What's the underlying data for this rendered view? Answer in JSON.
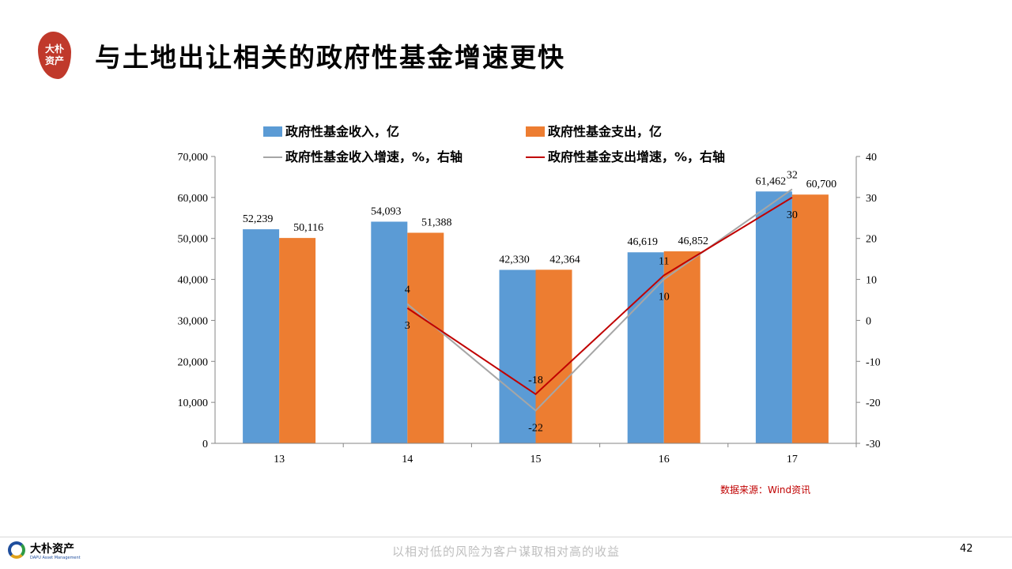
{
  "header": {
    "title": "与土地出让相关的政府性基金增速更快",
    "logo_text": [
      "大朴",
      "资产"
    ]
  },
  "chart_data": {
    "type": "bar",
    "categories": [
      "13",
      "14",
      "15",
      "16",
      "17"
    ],
    "series": [
      {
        "name": "政府性基金收入，亿",
        "kind": "bar",
        "axis": "left",
        "color": "#5b9bd5",
        "values": [
          52239,
          54093,
          42330,
          46619,
          61462
        ],
        "labels": [
          "52,239",
          "54,093",
          "42,330",
          "46,619",
          "61,462"
        ]
      },
      {
        "name": "政府性基金支出，亿",
        "kind": "bar",
        "axis": "left",
        "color": "#ed7d31",
        "values": [
          50116,
          51388,
          42364,
          46852,
          60700
        ],
        "labels": [
          "50,116",
          "51,388",
          "42,364",
          "46,852",
          "60,700"
        ]
      },
      {
        "name": "政府性基金收入增速，%，右轴",
        "kind": "line",
        "axis": "right",
        "color": "#a6a6a6",
        "values": [
          null,
          4,
          -22,
          10,
          32
        ],
        "labels": [
          "",
          "4",
          "-22",
          "10",
          "32"
        ]
      },
      {
        "name": "政府性基金支出增速，%，右轴",
        "kind": "line",
        "axis": "right",
        "color": "#c00000",
        "values": [
          null,
          3,
          -18,
          11,
          30
        ],
        "labels": [
          "",
          "3",
          "-18",
          "11",
          "30"
        ]
      }
    ],
    "y_left": {
      "range": [
        0,
        70000
      ],
      "ticks": [
        "0",
        "10,000",
        "20,000",
        "30,000",
        "40,000",
        "50,000",
        "60,000",
        "70,000"
      ]
    },
    "y_right": {
      "range": [
        -30,
        40
      ],
      "ticks": [
        "-30",
        "-20",
        "-10",
        "0",
        "10",
        "20",
        "30",
        "40"
      ]
    },
    "grid": false,
    "legend": "top"
  },
  "source": "数据来源：Wind资讯",
  "footer": {
    "logo_name": "大朴资产",
    "logo_en": "DAPU Asset Management",
    "slogan": "以相对低的风险为客户谋取相对高的收益",
    "page_number": "42"
  }
}
